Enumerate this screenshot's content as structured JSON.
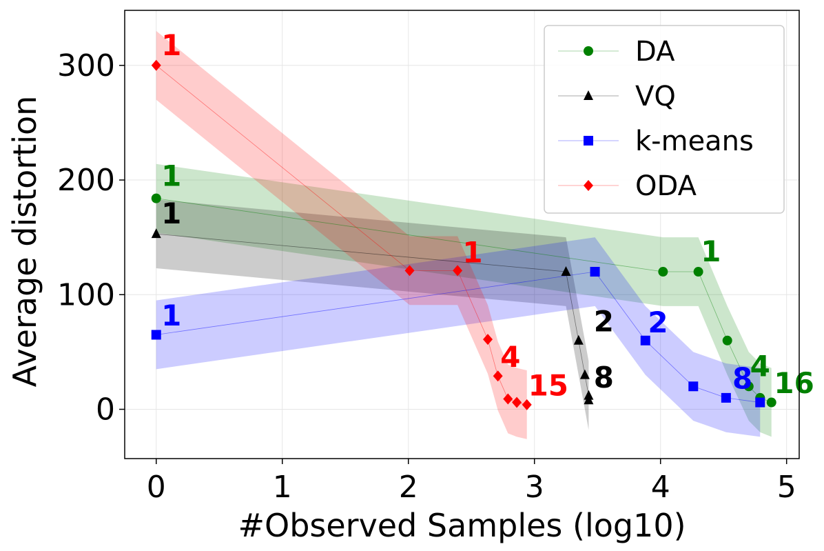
{
  "chart_data": {
    "type": "line",
    "xlabel": "#Observed Samples (log10)",
    "ylabel": "Average distortion",
    "xlim": [
      -0.25,
      5.1
    ],
    "ylim": [
      -43,
      348
    ],
    "xticks": [
      0,
      1,
      2,
      3,
      4,
      5
    ],
    "yticks": [
      0,
      100,
      200,
      300
    ],
    "x_tick_labels": [
      "0",
      "1",
      "2",
      "3",
      "4",
      "5"
    ],
    "y_tick_labels": [
      "0",
      "100",
      "200",
      "300"
    ],
    "grid": true,
    "legend": {
      "position": "top-right",
      "entries": [
        "DA",
        "VQ",
        "k-means",
        "ODA"
      ]
    },
    "series": [
      {
        "name": "DA",
        "color": "#008000",
        "band_color": "#008000",
        "marker": "circle",
        "x": [
          0,
          4.02,
          4.3,
          4.53,
          4.7,
          4.79,
          4.88
        ],
        "y": [
          184,
          120,
          120,
          60,
          20,
          10,
          6
        ],
        "band_x": [
          0,
          4.02,
          4.3,
          4.53,
          4.7,
          4.79,
          4.88
        ],
        "band_upper": [
          214,
          150,
          150,
          90,
          50,
          40,
          36
        ],
        "band_lower": [
          154,
          90,
          90,
          30,
          -10,
          -20,
          -24
        ],
        "labels": [
          {
            "text": "1",
            "x": 0.04,
            "y": 195
          },
          {
            "text": "1",
            "x": 4.32,
            "y": 129
          },
          {
            "text": "4",
            "x": 4.71,
            "y": 29
          },
          {
            "text": "16",
            "x": 4.9,
            "y": 14
          }
        ]
      },
      {
        "name": "VQ",
        "color": "#000000",
        "band_color": "#000000",
        "marker": "triangle",
        "x": [
          0,
          3.25,
          3.35,
          3.4,
          3.43,
          3.43
        ],
        "y": [
          153,
          120,
          60,
          30,
          12,
          8
        ],
        "band_x": [
          0,
          3.25,
          3.35,
          3.4,
          3.43,
          3.43
        ],
        "band_upper": [
          183,
          150,
          90,
          60,
          42,
          38
        ],
        "band_lower": [
          123,
          90,
          30,
          0,
          -18,
          -22
        ],
        "labels": [
          {
            "text": "1",
            "x": 0.04,
            "y": 162
          },
          {
            "text": "2",
            "x": 3.47,
            "y": 68
          },
          {
            "text": "8",
            "x": 3.47,
            "y": 19
          }
        ]
      },
      {
        "name": "k-means",
        "color": "#0000ff",
        "band_color": "#0000ff",
        "marker": "square",
        "x": [
          0,
          3.48,
          3.88,
          4.26,
          4.52,
          4.79
        ],
        "y": [
          65,
          120,
          60,
          20,
          10,
          6
        ],
        "band_x": [
          0,
          3.48,
          3.88,
          4.26,
          4.52,
          4.79
        ],
        "band_upper": [
          95,
          150,
          90,
          50,
          40,
          36
        ],
        "band_lower": [
          35,
          90,
          30,
          -10,
          -20,
          -24
        ],
        "labels": [
          {
            "text": "1",
            "x": 0.04,
            "y": 73
          },
          {
            "text": "2",
            "x": 3.9,
            "y": 67
          },
          {
            "text": "8",
            "x": 4.57,
            "y": 18
          }
        ]
      },
      {
        "name": "ODA",
        "color": "#ff0000",
        "band_color": "#ff0000",
        "marker": "diamond",
        "x": [
          0,
          2.01,
          2.39,
          2.63,
          2.71,
          2.79,
          2.86,
          2.94
        ],
        "y": [
          300,
          121,
          121,
          61,
          29,
          9,
          6,
          4
        ],
        "band_x": [
          0,
          2.01,
          2.39,
          2.63,
          2.71,
          2.79,
          2.86,
          2.94
        ],
        "band_upper": [
          330,
          151,
          151,
          91,
          59,
          39,
          36,
          34
        ],
        "band_lower": [
          270,
          91,
          91,
          31,
          -1,
          -21,
          -24,
          -26
        ],
        "labels": [
          {
            "text": "1",
            "x": 0.04,
            "y": 309
          },
          {
            "text": "1",
            "x": 2.43,
            "y": 128
          },
          {
            "text": "4",
            "x": 2.73,
            "y": 37
          },
          {
            "text": "15",
            "x": 2.95,
            "y": 12
          }
        ]
      }
    ]
  }
}
